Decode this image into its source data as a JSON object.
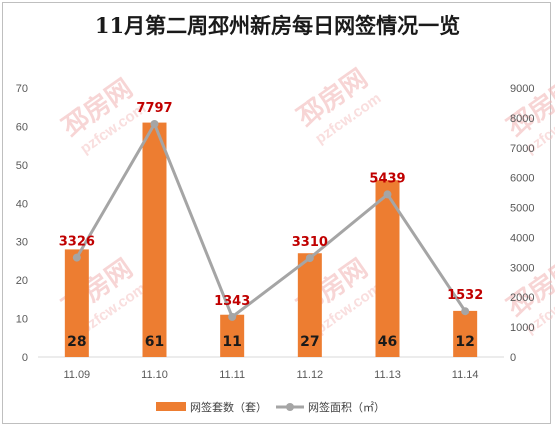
{
  "chart_data": {
    "type": "bar",
    "title": "11月第二周邳州新房每日网签情况一览",
    "categories": [
      "11.09",
      "11.10",
      "11.11",
      "11.12",
      "11.13",
      "11.14"
    ],
    "series": [
      {
        "name": "网签套数（套）",
        "type": "bar",
        "axis": "left",
        "values": [
          28,
          61,
          11,
          27,
          46,
          12
        ]
      },
      {
        "name": "网签面积（㎡）",
        "type": "line",
        "axis": "right",
        "values": [
          3326,
          7797,
          1343,
          3310,
          5439,
          1532
        ]
      }
    ],
    "left_axis": {
      "ylim": [
        0,
        70
      ],
      "ticks": [
        "0",
        "10",
        "20",
        "30",
        "40",
        "50",
        "60",
        "70"
      ]
    },
    "right_axis": {
      "ylim": [
        0,
        9000
      ],
      "ticks": [
        "0",
        "1000",
        "2000",
        "3000",
        "4000",
        "5000",
        "6000",
        "7000",
        "8000",
        "9000"
      ]
    },
    "grid": false,
    "legend_position": "bottom",
    "colors": {
      "bar": "#ed7d31",
      "line": "#a5a5a5",
      "line_label": "#c00000",
      "watermark": "#f2b3b3"
    },
    "watermark": {
      "cn": "邳房网",
      "en": "pzfcw.com"
    }
  }
}
